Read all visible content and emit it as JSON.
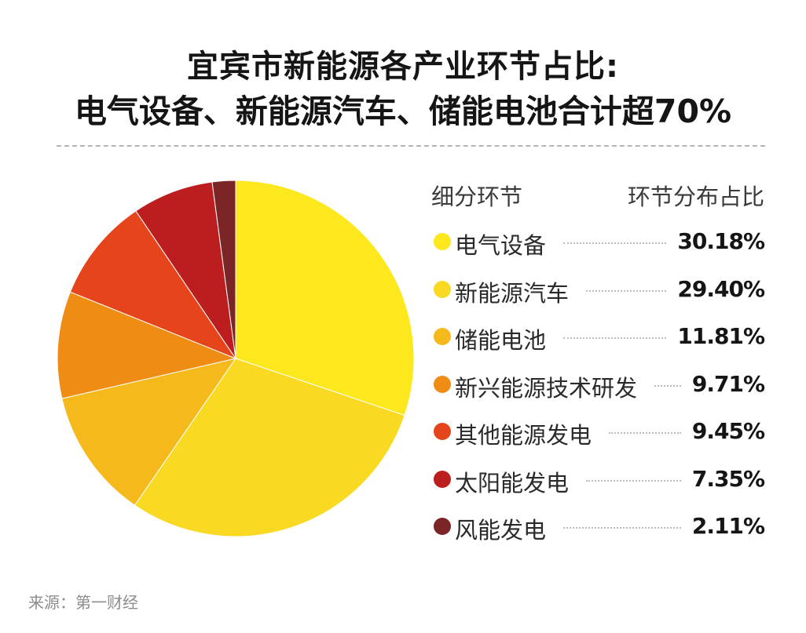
{
  "title_line1": "宜宾市新能源各产业环节占比:",
  "title_line2": "电气设备、新能源汽车、储能电池合计超70%",
  "legend_header_left": "细分环节",
  "legend_header_right": "环节分布占比",
  "source": "来源：第一财经",
  "chart_data": {
    "type": "pie",
    "title": "宜宾市新能源各产业环节占比:电气设备、新能源汽车、储能电池合计超70%",
    "start_angle": "12 o'clock",
    "direction": "clockwise",
    "slices": [
      {
        "label": "电气设备",
        "value": 30.18,
        "display": "30.18%",
        "color": "#FCE81C"
      },
      {
        "label": "新能源汽车",
        "value": 29.4,
        "display": "29.40%",
        "color": "#FAD922"
      },
      {
        "label": "储能电池",
        "value": 11.81,
        "display": "11.81%",
        "color": "#F5B91C"
      },
      {
        "label": "新兴能源技术研发",
        "value": 9.71,
        "display": "9.71%",
        "color": "#EE8C14"
      },
      {
        "label": "其他能源发电",
        "value": 9.45,
        "display": "9.45%",
        "color": "#E6441A"
      },
      {
        "label": "太阳能发电",
        "value": 7.35,
        "display": "7.35%",
        "color": "#BC1E20"
      },
      {
        "label": "风能发电",
        "value": 2.11,
        "display": "2.11%",
        "color": "#7B2527"
      }
    ],
    "legend_position": "right"
  }
}
